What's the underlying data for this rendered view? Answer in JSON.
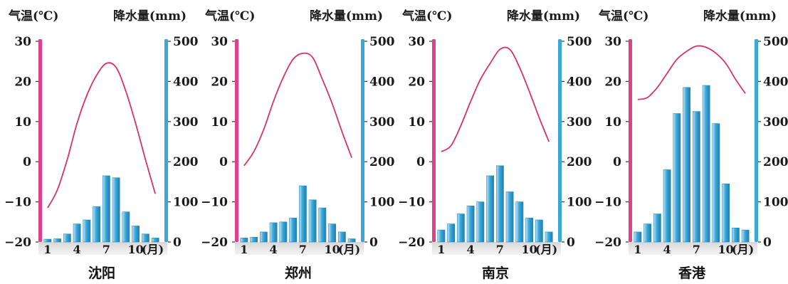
{
  "labels": {
    "temp_axis": "气温(℃)",
    "precip_axis": "降水量(mm)",
    "month_unit": "(月)"
  },
  "colors": {
    "temperature_line": "#d6336c",
    "temperature_axis": "#e0408a",
    "precipitation_bar": "#3aa7d8",
    "precipitation_axis": "#3aa7d8",
    "baseline": "#c9c9c9"
  },
  "chart_data": [
    {
      "type": "bar",
      "title": "沈阳",
      "categories": [
        1,
        2,
        3,
        4,
        5,
        6,
        7,
        8,
        9,
        10,
        11,
        12
      ],
      "x_ticks": [
        "1",
        "4",
        "7",
        "10"
      ],
      "series": [
        {
          "kind": "line",
          "axis": "left",
          "values": [
            -11.5,
            -7,
            0.5,
            9.5,
            16.5,
            21.5,
            24.5,
            23.5,
            17.5,
            9.5,
            0.5,
            -8
          ]
        },
        {
          "kind": "bar",
          "axis": "right",
          "values": [
            7,
            8,
            20,
            45,
            55,
            88,
            165,
            160,
            75,
            40,
            20,
            10
          ]
        }
      ],
      "ylim_left": [
        -20,
        30
      ],
      "yticks_left": [
        "30",
        "20",
        "10",
        "0",
        "−10",
        "−20"
      ],
      "ylim_right": [
        0,
        500
      ],
      "yticks_right": [
        "500",
        "400",
        "300",
        "200",
        "100",
        "0"
      ]
    },
    {
      "type": "bar",
      "title": "郑州",
      "categories": [
        1,
        2,
        3,
        4,
        5,
        6,
        7,
        8,
        9,
        10,
        11,
        12
      ],
      "x_ticks": [
        "1",
        "4",
        "7",
        "10"
      ],
      "series": [
        {
          "kind": "line",
          "axis": "left",
          "values": [
            -1,
            2.5,
            8,
            15,
            21,
            25.5,
            27,
            26,
            20.5,
            14.5,
            7.5,
            1
          ]
        },
        {
          "kind": "bar",
          "axis": "right",
          "values": [
            10,
            12,
            25,
            48,
            50,
            60,
            140,
            105,
            85,
            45,
            25,
            8
          ]
        }
      ],
      "ylim_left": [
        -20,
        30
      ],
      "yticks_left": [
        "30",
        "20",
        "10",
        "0",
        "−10",
        "−20"
      ],
      "ylim_right": [
        0,
        500
      ],
      "yticks_right": [
        "500",
        "400",
        "300",
        "200",
        "100",
        "0"
      ]
    },
    {
      "type": "bar",
      "title": "南京",
      "categories": [
        1,
        2,
        3,
        4,
        5,
        6,
        7,
        8,
        9,
        10,
        11,
        12
      ],
      "x_ticks": [
        "1",
        "4",
        "7",
        "10"
      ],
      "series": [
        {
          "kind": "line",
          "axis": "left",
          "values": [
            2.5,
            4,
            9,
            15,
            20.5,
            24.5,
            28,
            28,
            23.5,
            17.5,
            11,
            5
          ]
        },
        {
          "kind": "bar",
          "axis": "right",
          "values": [
            30,
            45,
            70,
            90,
            100,
            165,
            190,
            125,
            100,
            60,
            55,
            25
          ]
        }
      ],
      "ylim_left": [
        -20,
        30
      ],
      "yticks_left": [
        "30",
        "20",
        "10",
        "0",
        "−10",
        "−20"
      ],
      "ylim_right": [
        0,
        500
      ],
      "yticks_right": [
        "500",
        "400",
        "300",
        "200",
        "100",
        "0"
      ]
    },
    {
      "type": "bar",
      "title": "香港",
      "categories": [
        1,
        2,
        3,
        4,
        5,
        6,
        7,
        8,
        9,
        10,
        11,
        12
      ],
      "x_ticks": [
        "1",
        "4",
        "7",
        "10"
      ],
      "series": [
        {
          "kind": "line",
          "axis": "left",
          "values": [
            15.5,
            16,
            18.5,
            22,
            25.5,
            27.5,
            28.8,
            28.5,
            27,
            24.5,
            20.5,
            17
          ]
        },
        {
          "kind": "bar",
          "axis": "right",
          "values": [
            25,
            45,
            70,
            180,
            320,
            385,
            325,
            390,
            295,
            145,
            35,
            30
          ]
        }
      ],
      "ylim_left": [
        -20,
        30
      ],
      "yticks_left": [
        "30",
        "20",
        "10",
        "0",
        "−10",
        "−20"
      ],
      "ylim_right": [
        0,
        500
      ],
      "yticks_right": [
        "500",
        "400",
        "300",
        "200",
        "100",
        "0"
      ]
    }
  ]
}
